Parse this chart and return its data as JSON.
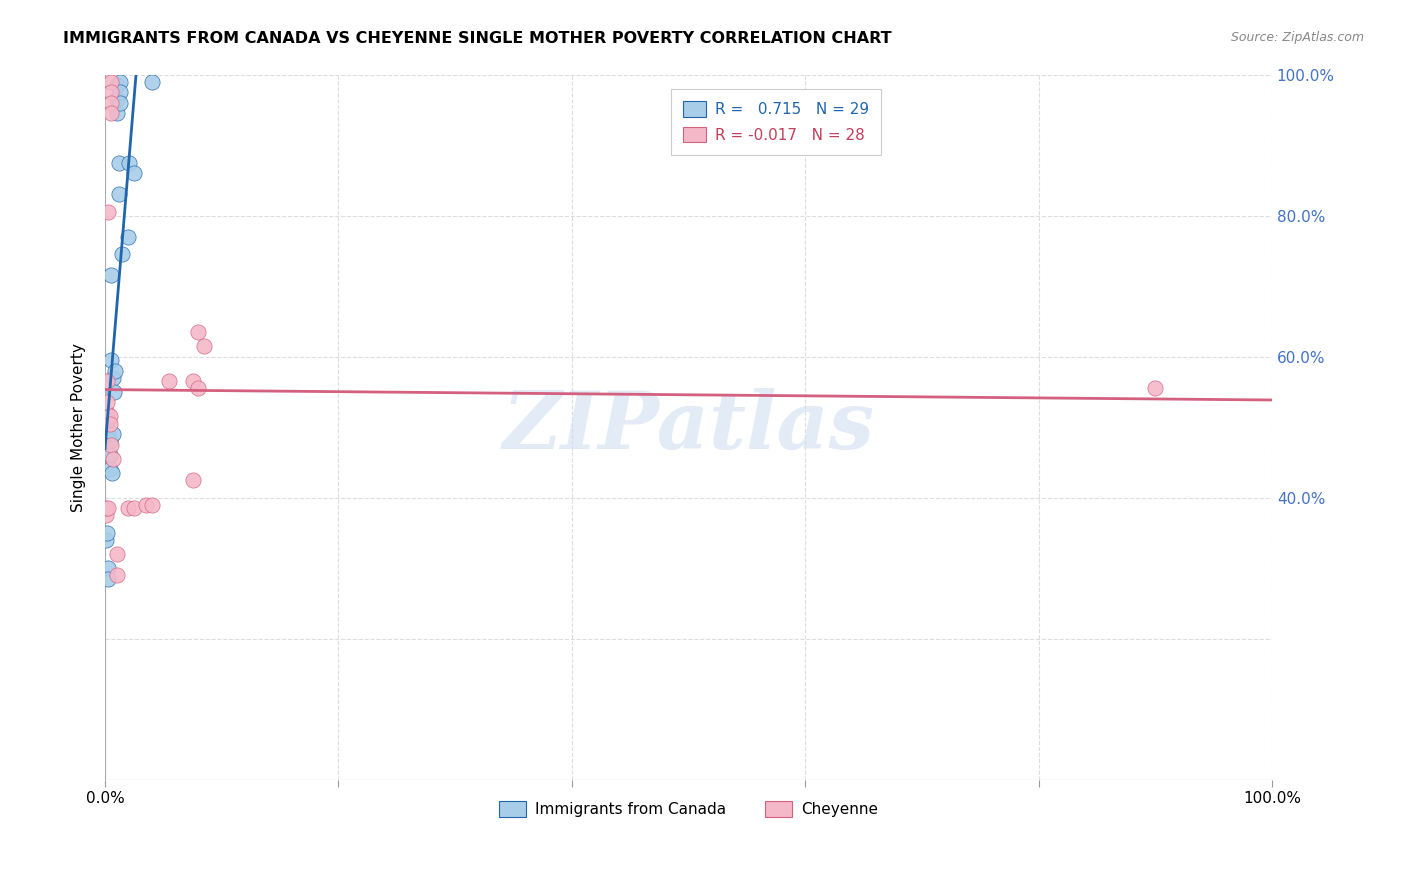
{
  "title": "IMMIGRANTS FROM CANADA VS CHEYENNE SINGLE MOTHER POVERTY CORRELATION CHART",
  "source": "Source: ZipAtlas.com",
  "ylabel": "Single Mother Poverty",
  "legend1_label": "Immigrants from Canada",
  "legend2_label": "Cheyenne",
  "R1": 0.715,
  "N1": 29,
  "R2": -0.017,
  "N2": 28,
  "color_blue": "#a8cde8",
  "color_pink": "#f4b8c8",
  "color_line_blue": "#2166ac",
  "color_line_pink": "#d46080",
  "watermark_text": "ZIPatlas",
  "blue_points": [
    [
      0.001,
      0.34
    ],
    [
      0.002,
      0.35
    ],
    [
      0.003,
      0.3
    ],
    [
      0.003,
      0.285
    ],
    [
      0.003,
      0.51
    ],
    [
      0.003,
      0.49
    ],
    [
      0.004,
      0.46
    ],
    [
      0.004,
      0.44
    ],
    [
      0.004,
      0.48
    ],
    [
      0.005,
      0.715
    ],
    [
      0.005,
      0.595
    ],
    [
      0.006,
      0.435
    ],
    [
      0.007,
      0.57
    ],
    [
      0.007,
      0.49
    ],
    [
      0.008,
      0.55
    ],
    [
      0.009,
      0.58
    ],
    [
      0.01,
      0.985
    ],
    [
      0.01,
      0.965
    ],
    [
      0.01,
      0.945
    ],
    [
      0.012,
      0.875
    ],
    [
      0.012,
      0.83
    ],
    [
      0.013,
      0.99
    ],
    [
      0.013,
      0.975
    ],
    [
      0.013,
      0.96
    ],
    [
      0.015,
      0.745
    ],
    [
      0.02,
      0.77
    ],
    [
      0.021,
      0.875
    ],
    [
      0.025,
      0.86
    ],
    [
      0.04,
      0.99
    ]
  ],
  "pink_points": [
    [
      0.001,
      0.375
    ],
    [
      0.001,
      0.385
    ],
    [
      0.002,
      0.52
    ],
    [
      0.002,
      0.535
    ],
    [
      0.002,
      0.565
    ],
    [
      0.003,
      0.385
    ],
    [
      0.003,
      0.805
    ],
    [
      0.004,
      0.515
    ],
    [
      0.004,
      0.505
    ],
    [
      0.005,
      0.475
    ],
    [
      0.005,
      0.99
    ],
    [
      0.005,
      0.975
    ],
    [
      0.005,
      0.96
    ],
    [
      0.005,
      0.945
    ],
    [
      0.007,
      0.455
    ],
    [
      0.01,
      0.29
    ],
    [
      0.01,
      0.32
    ],
    [
      0.02,
      0.385
    ],
    [
      0.025,
      0.385
    ],
    [
      0.035,
      0.39
    ],
    [
      0.04,
      0.39
    ],
    [
      0.055,
      0.565
    ],
    [
      0.075,
      0.565
    ],
    [
      0.08,
      0.555
    ],
    [
      0.075,
      0.425
    ],
    [
      0.08,
      0.635
    ],
    [
      0.085,
      0.615
    ],
    [
      0.9,
      0.555
    ]
  ],
  "xlim": [
    0.0,
    1.0
  ],
  "ylim": [
    0.0,
    1.0
  ],
  "xtick_positions": [
    0.0,
    0.2,
    0.4,
    0.6,
    0.8,
    1.0
  ],
  "ytick_values": [
    0.2,
    0.4,
    0.6,
    0.8,
    1.0
  ],
  "right_ytick_values": [
    0.4,
    0.6,
    0.8,
    1.0
  ],
  "blue_line_x": [
    0.0,
    0.04
  ],
  "blue_line_intercept": 0.29,
  "blue_line_slope": 18.0,
  "pink_line_intercept": 0.565,
  "pink_line_slope": -0.018
}
